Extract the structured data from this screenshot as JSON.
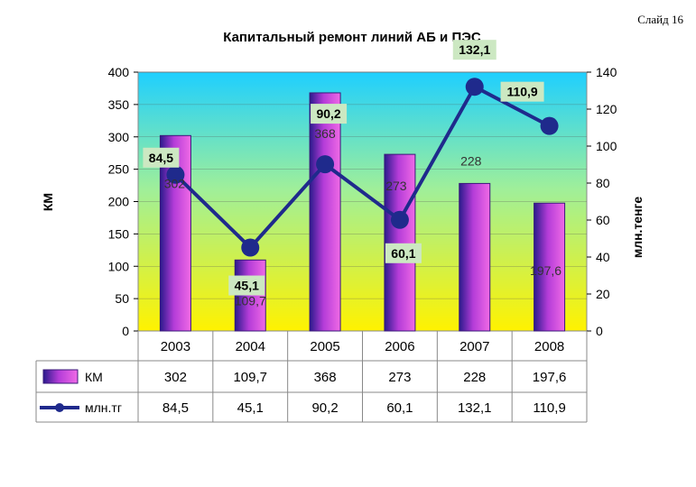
{
  "slide_label": "Слайд 16",
  "chart_data": {
    "type": "bar+line",
    "title": "Капитальный ремонт линий АБ и ПЭС",
    "categories": [
      "2003",
      "2004",
      "2005",
      "2006",
      "2007",
      "2008"
    ],
    "y_left": {
      "label": "КМ",
      "lim": [
        0,
        400
      ],
      "ticks": [
        "0",
        "50",
        "100",
        "150",
        "200",
        "250",
        "300",
        "350",
        "400"
      ]
    },
    "y_right": {
      "label": "млн.тенге",
      "lim": [
        0,
        140
      ],
      "ticks": [
        "0",
        "20",
        "40",
        "60",
        "80",
        "100",
        "120",
        "140"
      ]
    },
    "series": [
      {
        "name": "КМ",
        "type": "bar",
        "axis": "left",
        "values": [
          302,
          109.7,
          368,
          273,
          228,
          197.6
        ],
        "labels": [
          "302",
          "109,7",
          "368",
          "273",
          "228",
          "197,6"
        ]
      },
      {
        "name": "млн.тг",
        "type": "line",
        "axis": "right",
        "values": [
          84.5,
          45.1,
          90.2,
          60.1,
          132.1,
          110.9
        ],
        "labels": [
          "84,5",
          "45,1",
          "90,2",
          "60,1",
          "132,1",
          "110,9"
        ]
      }
    ],
    "legend": "data-table",
    "colors": {
      "line": "#1f2a8c",
      "bar_dark": "#2a1a8c",
      "bar_light": "#e85be0",
      "label_bg": "#cce8c2",
      "plot_top": "#1ecfff",
      "plot_bottom": "#fff200"
    }
  }
}
